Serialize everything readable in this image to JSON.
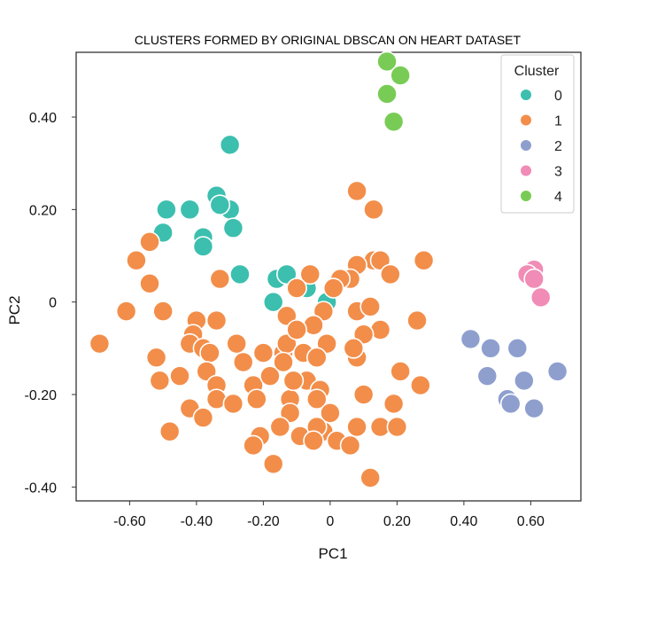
{
  "chart_data": {
    "type": "scatter",
    "title": "CLUSTERS FORMED BY ORIGINAL DBSCAN ON HEART DATASET",
    "xlabel": "PC1",
    "ylabel": "PC2",
    "xlim": [
      -0.76,
      0.75
    ],
    "ylim": [
      -0.43,
      0.54
    ],
    "x_ticks": [
      {
        "value": -0.6,
        "label": "-0.60"
      },
      {
        "value": -0.4,
        "label": "-0.40"
      },
      {
        "value": -0.2,
        "label": "-0.20"
      },
      {
        "value": 0,
        "label": "0"
      },
      {
        "value": 0.2,
        "label": "0.20"
      },
      {
        "value": 0.4,
        "label": "0.40"
      },
      {
        "value": 0.6,
        "label": "0.60"
      }
    ],
    "y_ticks": [
      {
        "value": 0.4,
        "label": "0.40"
      },
      {
        "value": 0.2,
        "label": "0.20"
      },
      {
        "value": 0,
        "label": "0"
      },
      {
        "value": -0.2,
        "label": "-0.20"
      },
      {
        "value": -0.4,
        "label": "-0.40"
      }
    ],
    "grid": false,
    "legend_position": "top-right",
    "legend_title": "Cluster",
    "series": [
      {
        "name": "0",
        "color": "#3cbfae",
        "points": [
          [
            -0.3,
            0.34
          ],
          [
            -0.34,
            0.23
          ],
          [
            -0.3,
            0.2
          ],
          [
            -0.33,
            0.21
          ],
          [
            -0.42,
            0.2
          ],
          [
            -0.49,
            0.2
          ],
          [
            -0.5,
            0.15
          ],
          [
            -0.29,
            0.16
          ],
          [
            -0.38,
            0.14
          ],
          [
            -0.38,
            0.12
          ],
          [
            -0.27,
            0.06
          ],
          [
            -0.16,
            0.05
          ],
          [
            -0.13,
            0.06
          ],
          [
            -0.07,
            0.03
          ],
          [
            -0.17,
            0.0
          ],
          [
            -0.01,
            0.0
          ]
        ]
      },
      {
        "name": "1",
        "color": "#f28e4a",
        "points": [
          [
            0.08,
            0.24
          ],
          [
            0.13,
            0.2
          ],
          [
            0.28,
            0.09
          ],
          [
            0.13,
            0.09
          ],
          [
            0.15,
            0.09
          ],
          [
            0.08,
            0.08
          ],
          [
            0.18,
            0.06
          ],
          [
            0.06,
            0.05
          ],
          [
            0.03,
            0.05
          ],
          [
            0.01,
            0.03
          ],
          [
            -0.06,
            0.06
          ],
          [
            -0.1,
            0.03
          ],
          [
            -0.58,
            0.09
          ],
          [
            -0.54,
            0.13
          ],
          [
            -0.54,
            0.04
          ],
          [
            -0.33,
            0.05
          ],
          [
            -0.61,
            -0.02
          ],
          [
            -0.5,
            -0.02
          ],
          [
            -0.4,
            -0.04
          ],
          [
            -0.34,
            -0.04
          ],
          [
            -0.13,
            -0.03
          ],
          [
            -0.02,
            -0.02
          ],
          [
            -0.05,
            -0.05
          ],
          [
            0.08,
            -0.02
          ],
          [
            0.12,
            -0.01
          ],
          [
            0.26,
            -0.04
          ],
          [
            0.15,
            -0.06
          ],
          [
            0.1,
            -0.07
          ],
          [
            -0.69,
            -0.09
          ],
          [
            -0.52,
            -0.12
          ],
          [
            -0.41,
            -0.07
          ],
          [
            -0.42,
            -0.09
          ],
          [
            -0.38,
            -0.1
          ],
          [
            -0.36,
            -0.11
          ],
          [
            -0.28,
            -0.09
          ],
          [
            -0.26,
            -0.13
          ],
          [
            -0.2,
            -0.11
          ],
          [
            -0.14,
            -0.11
          ],
          [
            -0.13,
            -0.09
          ],
          [
            -0.08,
            -0.11
          ],
          [
            -0.01,
            -0.09
          ],
          [
            -0.04,
            -0.12
          ],
          [
            0.08,
            -0.12
          ],
          [
            0.07,
            -0.1
          ],
          [
            -0.51,
            -0.17
          ],
          [
            -0.45,
            -0.16
          ],
          [
            -0.37,
            -0.15
          ],
          [
            -0.34,
            -0.18
          ],
          [
            -0.23,
            -0.18
          ],
          [
            -0.18,
            -0.16
          ],
          [
            -0.14,
            -0.13
          ],
          [
            -0.07,
            -0.17
          ],
          [
            -0.03,
            -0.19
          ],
          [
            0.1,
            -0.2
          ],
          [
            0.21,
            -0.15
          ],
          [
            0.27,
            -0.18
          ],
          [
            -0.34,
            -0.21
          ],
          [
            -0.29,
            -0.22
          ],
          [
            -0.42,
            -0.23
          ],
          [
            -0.38,
            -0.25
          ],
          [
            -0.22,
            -0.21
          ],
          [
            -0.12,
            -0.21
          ],
          [
            -0.12,
            -0.24
          ],
          [
            -0.04,
            -0.21
          ],
          [
            0.0,
            -0.24
          ],
          [
            0.08,
            -0.27
          ],
          [
            -0.15,
            -0.27
          ],
          [
            -0.09,
            -0.29
          ],
          [
            -0.02,
            -0.28
          ],
          [
            0.02,
            -0.3
          ],
          [
            0.06,
            -0.31
          ],
          [
            0.15,
            -0.27
          ],
          [
            0.2,
            -0.27
          ],
          [
            0.19,
            -0.22
          ],
          [
            -0.48,
            -0.28
          ],
          [
            -0.21,
            -0.29
          ],
          [
            -0.23,
            -0.31
          ],
          [
            -0.17,
            -0.35
          ],
          [
            0.12,
            -0.38
          ],
          [
            -0.04,
            -0.27
          ],
          [
            -0.05,
            -0.3
          ],
          [
            -0.11,
            -0.17
          ],
          [
            -0.1,
            -0.06
          ]
        ]
      },
      {
        "name": "2",
        "color": "#8e9fce",
        "points": [
          [
            0.42,
            -0.08
          ],
          [
            0.48,
            -0.1
          ],
          [
            0.56,
            -0.1
          ],
          [
            0.68,
            -0.15
          ],
          [
            0.47,
            -0.16
          ],
          [
            0.58,
            -0.17
          ],
          [
            0.53,
            -0.21
          ],
          [
            0.54,
            -0.22
          ],
          [
            0.61,
            -0.23
          ]
        ]
      },
      {
        "name": "3",
        "color": "#f08cb6",
        "points": [
          [
            0.61,
            0.07
          ],
          [
            0.59,
            0.06
          ],
          [
            0.61,
            0.05
          ],
          [
            0.63,
            0.01
          ]
        ]
      },
      {
        "name": "4",
        "color": "#78cc55",
        "points": [
          [
            0.17,
            0.52
          ],
          [
            0.21,
            0.49
          ],
          [
            0.17,
            0.45
          ],
          [
            0.19,
            0.39
          ]
        ]
      }
    ]
  }
}
